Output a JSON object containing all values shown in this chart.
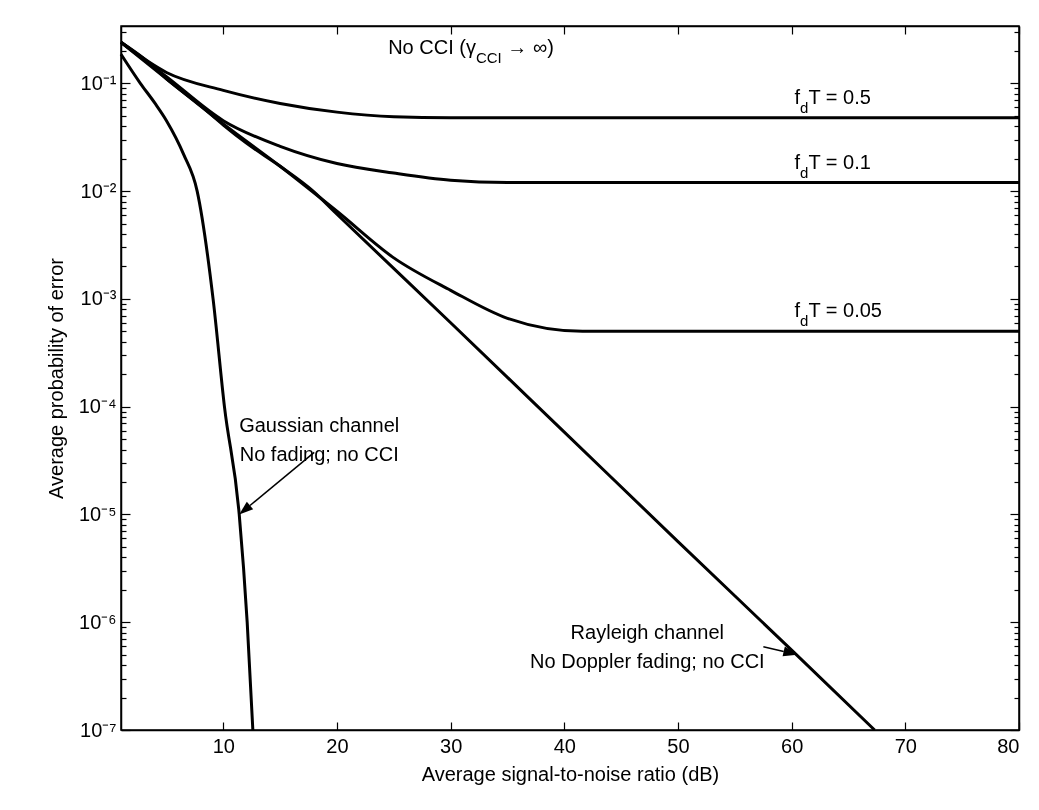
{
  "chart_data": {
    "type": "line",
    "xlabel": "Average signal-to-noise ratio (dB)",
    "ylabel": "Average probability of error",
    "log": "y",
    "xlim": [
      1,
      80
    ],
    "xticks": [
      10,
      20,
      30,
      40,
      50,
      60,
      70,
      80
    ],
    "ylim": [
      1e-07,
      0.34
    ],
    "yticks": [
      {
        "value": 1e-07,
        "label": "10⁻⁷"
      },
      {
        "value": 2e-07,
        "label": null
      },
      {
        "value": 3e-07,
        "label": null
      },
      {
        "value": 4e-07,
        "label": null
      },
      {
        "value": 5e-07,
        "label": null
      },
      {
        "value": 6e-07,
        "label": null
      },
      {
        "value": 7e-07,
        "label": null
      },
      {
        "value": 8e-07,
        "label": null
      },
      {
        "value": 9e-07,
        "label": null
      },
      {
        "value": 1e-06,
        "label": "10⁻⁶"
      },
      {
        "value": 2e-06,
        "label": null
      },
      {
        "value": 3e-06,
        "label": null
      },
      {
        "value": 4e-06,
        "label": null
      },
      {
        "value": 5e-06,
        "label": null
      },
      {
        "value": 6e-06,
        "label": null
      },
      {
        "value": 7e-06,
        "label": null
      },
      {
        "value": 8e-06,
        "label": null
      },
      {
        "value": 9e-06,
        "label": null
      },
      {
        "value": 1e-05,
        "label": "10⁻⁵"
      },
      {
        "value": 2e-05,
        "label": null
      },
      {
        "value": 3e-05,
        "label": null
      },
      {
        "value": 4e-05,
        "label": null
      },
      {
        "value": 5e-05,
        "label": null
      },
      {
        "value": 6e-05,
        "label": null
      },
      {
        "value": 7e-05,
        "label": null
      },
      {
        "value": 8e-05,
        "label": null
      },
      {
        "value": 9e-05,
        "label": null
      },
      {
        "value": 0.0001,
        "label": "10⁻⁴"
      },
      {
        "value": 0.0002,
        "label": null
      },
      {
        "value": 0.0003,
        "label": null
      },
      {
        "value": 0.0004,
        "label": null
      },
      {
        "value": 0.0005,
        "label": null
      },
      {
        "value": 0.0006,
        "label": null
      },
      {
        "value": 0.0007,
        "label": null
      },
      {
        "value": 0.0008,
        "label": null
      },
      {
        "value": 0.0009,
        "label": null
      },
      {
        "value": 0.001,
        "label": "10⁻³"
      },
      {
        "value": 0.002,
        "label": null
      },
      {
        "value": 0.003,
        "label": null
      },
      {
        "value": 0.004,
        "label": null
      },
      {
        "value": 0.005,
        "label": null
      },
      {
        "value": 0.006,
        "label": null
      },
      {
        "value": 0.007,
        "label": null
      },
      {
        "value": 0.008,
        "label": null
      },
      {
        "value": 0.009,
        "label": null
      },
      {
        "value": 0.01,
        "label": "10⁻²"
      },
      {
        "value": 0.02,
        "label": null
      },
      {
        "value": 0.03,
        "label": null
      },
      {
        "value": 0.04,
        "label": null
      },
      {
        "value": 0.05,
        "label": null
      },
      {
        "value": 0.06,
        "label": null
      },
      {
        "value": 0.07,
        "label": null
      },
      {
        "value": 0.08,
        "label": null
      },
      {
        "value": 0.09,
        "label": null
      },
      {
        "value": 0.1,
        "label": "10⁻¹"
      },
      {
        "value": 0.2,
        "label": null
      },
      {
        "value": 0.3,
        "label": null
      }
    ],
    "line_style": "solid",
    "series": [
      {
        "name": "f$_{d}$T = 0.5",
        "color": "#000000",
        "x": [
          1,
          5,
          10,
          15,
          20,
          25,
          30,
          80
        ],
        "values": [
          0.24,
          0.126,
          0.086,
          0.065,
          0.054,
          0.049,
          0.048,
          0.048
        ]
      },
      {
        "name": "f$_{d}$T = 0.1",
        "color": "#000000",
        "x": [
          1,
          5,
          10,
          15,
          20,
          25,
          30,
          35,
          80
        ],
        "values": [
          0.24,
          0.115,
          0.045,
          0.026,
          0.018,
          0.0147,
          0.0126,
          0.012,
          0.012
        ]
      },
      {
        "name": "f$_{d}$T = 0.05",
        "color": "#000000",
        "x": [
          1,
          5,
          10,
          15,
          20,
          25,
          30,
          35,
          41.6,
          80
        ],
        "values": [
          0.24,
          0.11,
          0.042,
          0.017,
          0.0065,
          0.0024,
          0.0012,
          0.00066,
          0.0005,
          0.0005
        ]
      },
      {
        "color": "#000000",
        "x": [
          1,
          3,
          5,
          8,
          10,
          12,
          15,
          17.9,
          20,
          30,
          40,
          50,
          60,
          67.3
        ],
        "values": [
          0.24,
          0.17,
          0.11,
          0.062,
          0.041,
          0.028,
          0.017,
          0.01,
          0.0061,
          0.0006,
          5.8e-05,
          5.6e-06,
          5.5e-07,
          1e-07
        ]
      },
      {
        "color": "#000000",
        "x": [
          1,
          2.7,
          4,
          5,
          6.5,
          7.7,
          9.1,
          10.1,
          11.4,
          12.1,
          12.6
        ],
        "values": [
          0.186,
          0.1,
          0.065,
          0.045,
          0.022,
          0.01,
          0.001,
          0.0001,
          1e-05,
          1e-06,
          1e-07
        ]
      }
    ],
    "annotations": [
      "No CCI (γ$_{CCI}$ → ∞)",
      {
        "text": "Gaussian channel\nNo fading; no CCI",
        "x": 11.4,
        "y": 1e-05
      },
      {
        "text": "Rayleigh channel\nNo Doppler fading; no CCI",
        "x": 60.5,
        "y": 5e-07
      }
    ]
  }
}
